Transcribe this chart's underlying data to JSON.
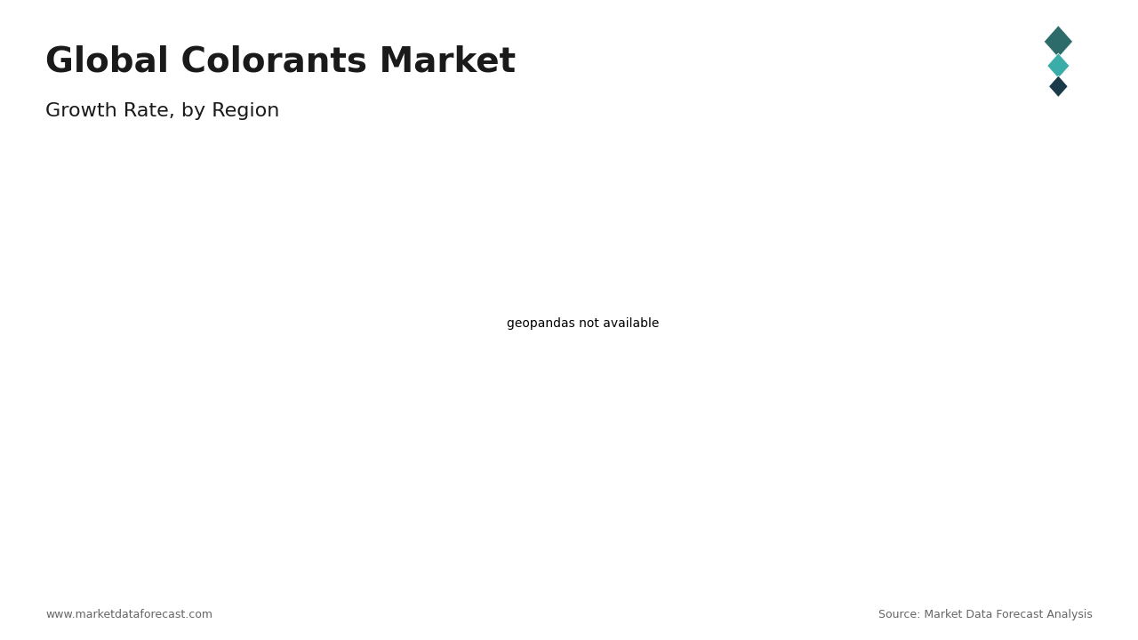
{
  "title": "Global Colorants Market",
  "subtitle": "Growth Rate, by Region",
  "title_color": "#1a1a1a",
  "subtitle_color": "#1a1a1a",
  "accent_bar_color": "#3aada8",
  "background_color": "#ffffff",
  "footer_left": "www.marketdataforecast.com",
  "footer_right": "Source: Market Data Forecast Analysis",
  "region_colors": {
    "north_america": "#4a90d9",
    "europe": "#a8c8e8",
    "russia": "#b8d4e8",
    "asia_pacific": "#1a3a6b",
    "latin_america": "#cccccc",
    "middle_east_africa": "#cccccc",
    "oceania": "#cccccc",
    "default": "#cccccc"
  },
  "logo_colors": [
    "#2d6b6b",
    "#3aada8",
    "#1a3a4a"
  ]
}
